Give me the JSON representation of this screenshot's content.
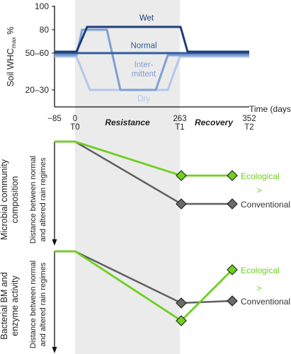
{
  "top_panel": {
    "ylabel_main": "Soil WHC",
    "ylabel_sub": "max",
    "ylabel_unit": " %",
    "y_ticks": [
      "100",
      "80",
      "50–60",
      "20–30"
    ],
    "x_ticks": [
      {
        "top": "−85",
        "bottom": ""
      },
      {
        "top": "0",
        "bottom": "T0"
      },
      {
        "top": "263",
        "bottom": "T1"
      },
      {
        "top": "352",
        "bottom": "T2"
      }
    ],
    "xlabel": "Time (days)",
    "phase_resistance": "Resistance",
    "phase_recovery": "Recovery",
    "regimes": [
      {
        "name": "Wet",
        "color": "#1f3d7a"
      },
      {
        "name": "Normal",
        "color": "#2f5f9e"
      },
      {
        "name": "Inter-",
        "name2": "mittent",
        "color": "#7f9fd6"
      },
      {
        "name": "Dry",
        "color": "#b4c7ea"
      }
    ]
  },
  "panel_microbial": {
    "ylabel_outer_1": "Microbial community",
    "ylabel_outer_2": "composition",
    "ylabel_inner_1": "Distance between normal",
    "ylabel_inner_2": "and altered rain regimes",
    "series": [
      {
        "name": "Ecological",
        "color": "#6fcf1f"
      },
      {
        "name": "Conventional",
        "color": "#5f5f5f"
      }
    ],
    "comparison": ">"
  },
  "panel_bacterial": {
    "ylabel_outer_1": "Bacterial BM and",
    "ylabel_outer_2": "enzyme activity",
    "ylabel_inner_1": "Distance between normal",
    "ylabel_inner_2": "and altered rain regimes",
    "series": [
      {
        "name": "Ecological",
        "color": "#6fcf1f"
      },
      {
        "name": "Conventional",
        "color": "#5f5f5f"
      }
    ],
    "comparison": ">"
  },
  "colors": {
    "phase_band": "#ebebeb",
    "axis": "#111111"
  }
}
